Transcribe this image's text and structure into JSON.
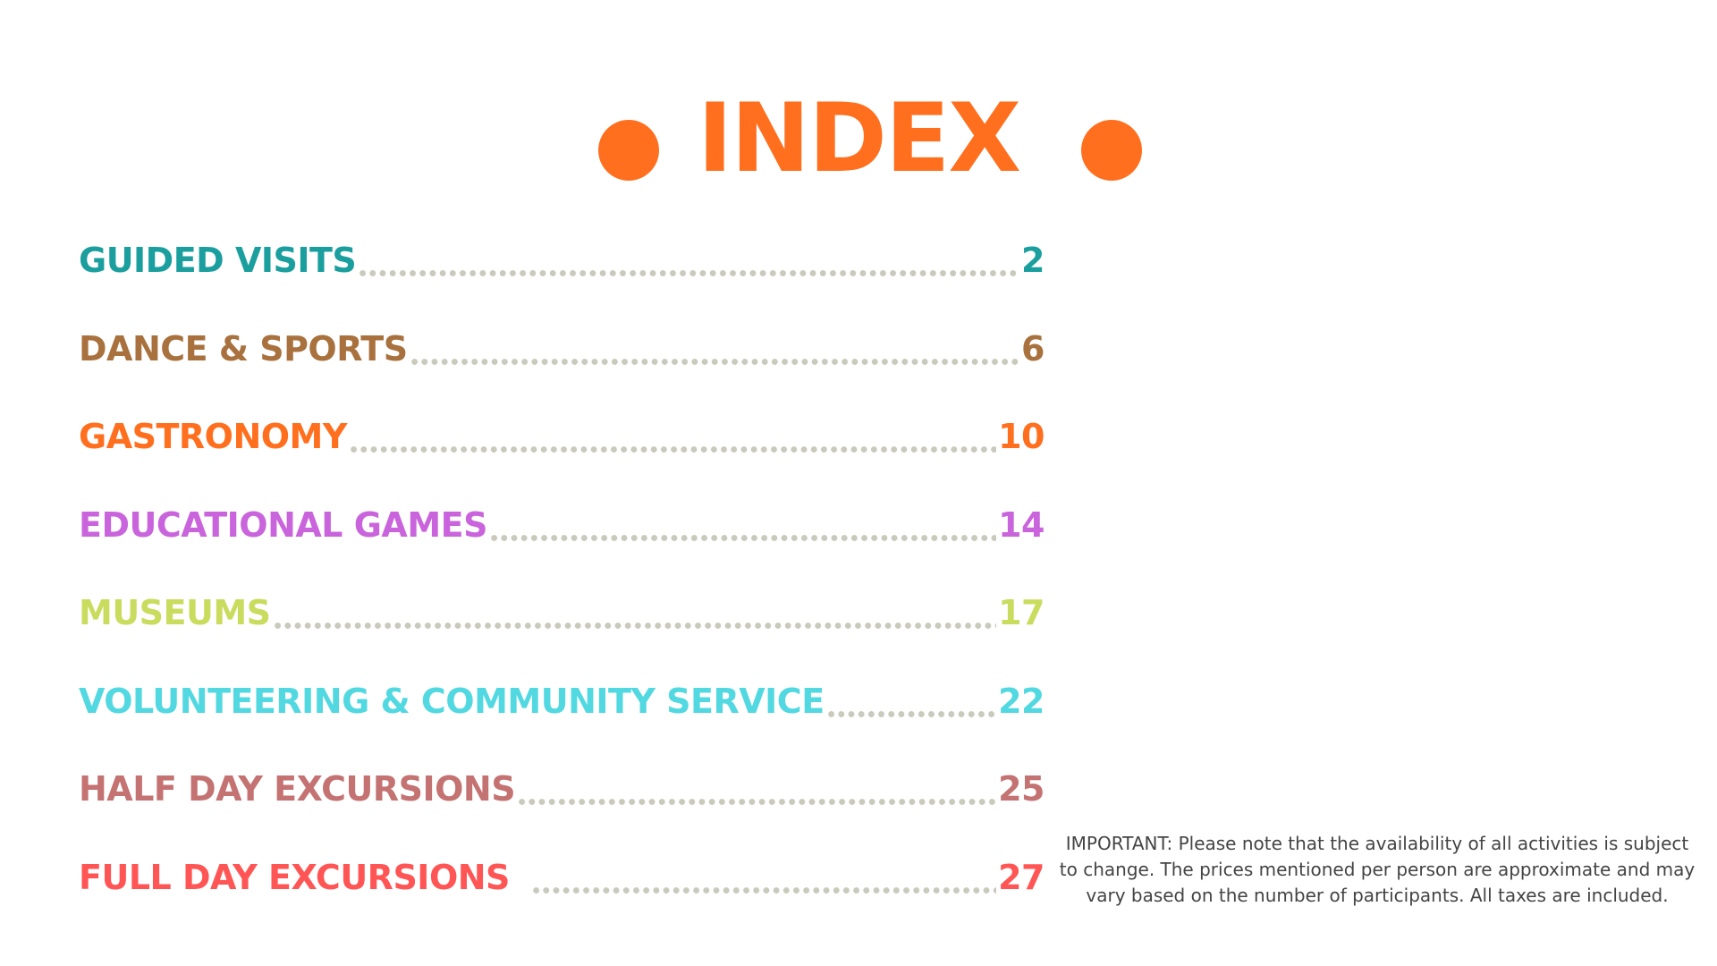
{
  "title": "INDEX",
  "colors": {
    "accent": "#ff6f1e",
    "leader_dots": "#c9c9bc"
  },
  "entries": [
    {
      "label": "GUIDED VISITS",
      "page": "2",
      "color": "#1a9e9e"
    },
    {
      "label": "DANCE & SPORTS",
      "page": "6",
      "color": "#a8713d"
    },
    {
      "label": "GASTRONOMY",
      "page": "10",
      "color": "#ff6f1e"
    },
    {
      "label": "EDUCATIONAL GAMES",
      "page": "14",
      "color": "#c964dc"
    },
    {
      "label": "MUSEUMS",
      "page": "17",
      "color": "#c9dc5e"
    },
    {
      "label": "VOLUNTEERING & COMMUNITY SERVICE",
      "page": "22",
      "color": "#52d8e0"
    },
    {
      "label": "HALF DAY EXCURSIONS",
      "page": "25",
      "color": "#c47272"
    },
    {
      "label": "FULL DAY EXCURSIONS",
      "page": "27",
      "color": "#ff5555"
    }
  ],
  "notice": "IMPORTANT: Please note that the availability of all activities is subject to change. The prices mentioned per person are approximate and may vary based on the number of participants. All taxes are included."
}
